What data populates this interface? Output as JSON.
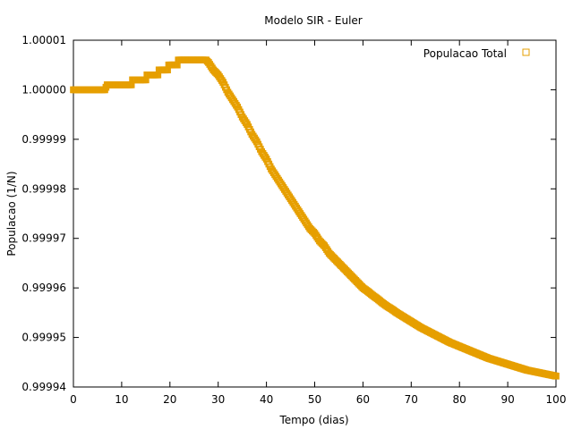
{
  "chart_data": {
    "type": "scatter",
    "title": "Modelo SIR - Euler",
    "xlabel": "Tempo (dias)",
    "ylabel": "Populacao (1/N)",
    "xlim": [
      0,
      100
    ],
    "ylim": [
      0.99994,
      1.00001
    ],
    "x_ticks": [
      "0",
      "10",
      "20",
      "30",
      "40",
      "50",
      "60",
      "70",
      "80",
      "90",
      "100"
    ],
    "y_ticks": [
      "0.99994",
      "0.99995",
      "0.99996",
      "0.99997",
      "0.99998",
      "0.99999",
      "1.00000",
      "1.00001"
    ],
    "grid": false,
    "legend_position": "top-right",
    "marker": "open-square",
    "series": [
      {
        "name": "Populacao Total",
        "color": "#e69f00",
        "points": [
          [
            0,
            1.0
          ],
          [
            6.7,
            1.0
          ],
          [
            6.8,
            1.000001
          ],
          [
            12.0,
            1.000001
          ],
          [
            12.1,
            1.000002
          ],
          [
            15.0,
            1.000002
          ],
          [
            15.1,
            1.000003
          ],
          [
            17.5,
            1.000003
          ],
          [
            17.6,
            1.000004
          ],
          [
            19.5,
            1.000004
          ],
          [
            19.6,
            1.000005
          ],
          [
            21.5,
            1.000005
          ],
          [
            21.6,
            1.000006
          ],
          [
            27.5,
            1.000006
          ],
          [
            28.0,
            1.0000055
          ],
          [
            29.0,
            1.000004
          ],
          [
            30.0,
            1.000003
          ],
          [
            31.0,
            1.0000015
          ],
          [
            32.0,
            0.9999995
          ],
          [
            33.0,
            0.999998
          ],
          [
            34.0,
            0.9999965
          ],
          [
            35.0,
            0.9999945
          ],
          [
            36.0,
            0.999993
          ],
          [
            37.0,
            0.999991
          ],
          [
            38.0,
            0.9999895
          ],
          [
            39.0,
            0.9999875
          ],
          [
            40.0,
            0.999986
          ],
          [
            41.0,
            0.999984
          ],
          [
            42.0,
            0.9999825
          ],
          [
            43.0,
            0.999981
          ],
          [
            44.0,
            0.9999795
          ],
          [
            45.0,
            0.999978
          ],
          [
            46.0,
            0.9999765
          ],
          [
            47.0,
            0.999975
          ],
          [
            48.0,
            0.9999735
          ],
          [
            49.0,
            0.999972
          ],
          [
            50.0,
            0.999971
          ],
          [
            51.0,
            0.9999695
          ],
          [
            52.0,
            0.9999685
          ],
          [
            53.0,
            0.999967
          ],
          [
            54.0,
            0.999966
          ],
          [
            55.0,
            0.999965
          ],
          [
            56.0,
            0.999964
          ],
          [
            57.0,
            0.999963
          ],
          [
            58.0,
            0.999962
          ],
          [
            59.0,
            0.999961
          ],
          [
            60.0,
            0.99996
          ],
          [
            61.0,
            0.9999593
          ],
          [
            62.0,
            0.9999585
          ],
          [
            63.0,
            0.9999578
          ],
          [
            64.0,
            0.999957
          ],
          [
            65.0,
            0.9999563
          ],
          [
            66.0,
            0.9999557
          ],
          [
            67.0,
            0.999955
          ],
          [
            68.0,
            0.9999544
          ],
          [
            69.0,
            0.9999538
          ],
          [
            70.0,
            0.9999532
          ],
          [
            71.0,
            0.9999526
          ],
          [
            72.0,
            0.999952
          ],
          [
            73.0,
            0.9999515
          ],
          [
            74.0,
            0.999951
          ],
          [
            75.0,
            0.9999505
          ],
          [
            76.0,
            0.99995
          ],
          [
            77.0,
            0.9999495
          ],
          [
            78.0,
            0.999949
          ],
          [
            79.0,
            0.9999486
          ],
          [
            80.0,
            0.9999482
          ],
          [
            81.0,
            0.9999478
          ],
          [
            82.0,
            0.9999474
          ],
          [
            83.0,
            0.999947
          ],
          [
            84.0,
            0.9999466
          ],
          [
            85.0,
            0.9999462
          ],
          [
            86.0,
            0.9999458
          ],
          [
            87.0,
            0.9999455
          ],
          [
            88.0,
            0.9999452
          ],
          [
            89.0,
            0.9999449
          ],
          [
            90.0,
            0.9999446
          ],
          [
            91.0,
            0.9999443
          ],
          [
            92.0,
            0.999944
          ],
          [
            93.0,
            0.9999437
          ],
          [
            94.0,
            0.9999434
          ],
          [
            95.0,
            0.9999432
          ],
          [
            96.0,
            0.999943
          ],
          [
            97.0,
            0.9999428
          ],
          [
            98.0,
            0.9999426
          ],
          [
            99.0,
            0.9999424
          ],
          [
            100.0,
            0.9999422
          ]
        ]
      }
    ]
  }
}
